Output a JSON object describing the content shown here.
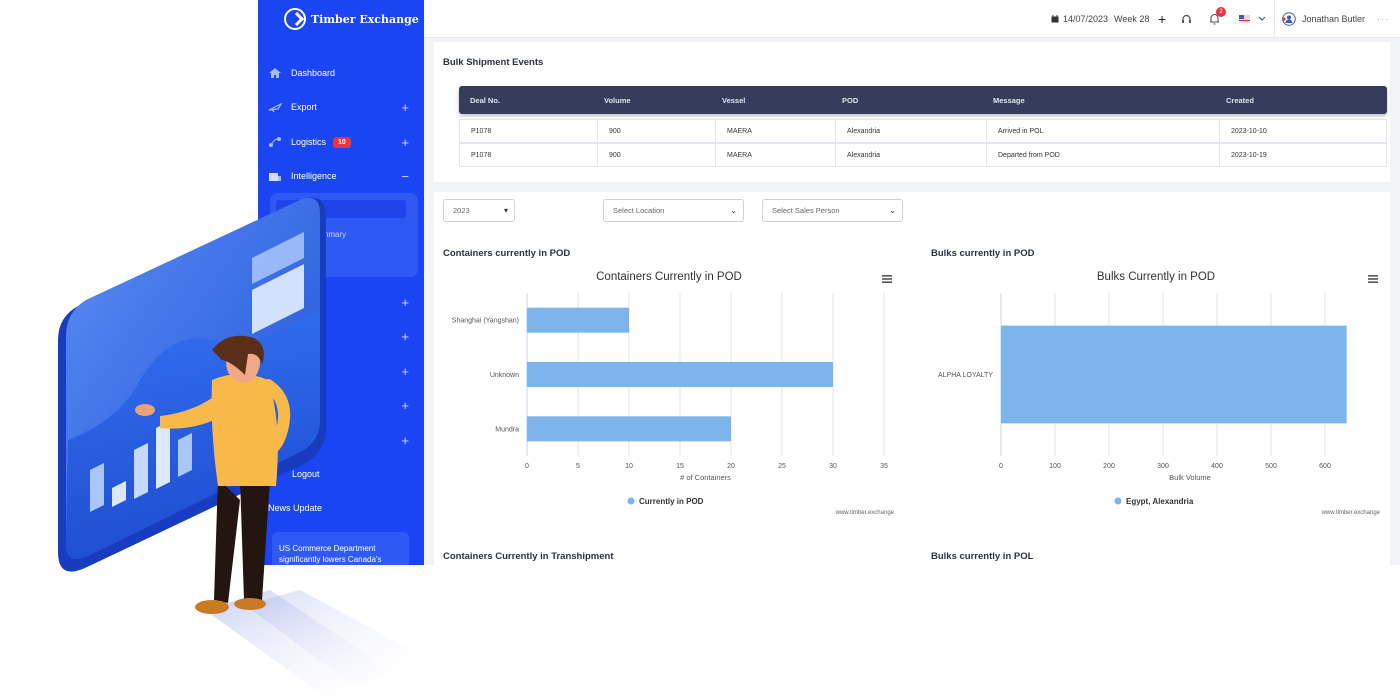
{
  "brand": {
    "name": "Timber Exchange"
  },
  "sidebar": {
    "items": [
      {
        "label": "Dashboard",
        "icon": "home-icon"
      },
      {
        "label": "Export",
        "icon": "plane-icon"
      },
      {
        "label": "Logistics",
        "icon": "route-icon",
        "badge": "10"
      },
      {
        "label": "Intelligence",
        "icon": "chart-icon"
      }
    ],
    "submenu": [
      "...mmary",
      "...a"
    ],
    "logout": "Logout",
    "news_title": "News Update",
    "news_text": "US Commerce Department significantly lowers Canada's"
  },
  "topbar": {
    "date": "14/07/2023",
    "week": "Week 28",
    "notif_count": "2",
    "user": "Jonathan Butler"
  },
  "events": {
    "title": "Bulk Shipment Events",
    "columns": [
      "Deal No.",
      "Volume",
      "Vessel",
      "POD",
      "Message",
      "Created"
    ],
    "rows": [
      [
        "P1078",
        "900",
        "MAERA",
        "Alexandria",
        "Arrived in POL",
        "2023-10-10"
      ],
      [
        "P1078",
        "900",
        "MAERA",
        "Alexandria",
        "Departed from POD",
        "2023-10-19"
      ]
    ]
  },
  "filters": {
    "year": "2023",
    "location_placeholder": "Select Location",
    "sales_placeholder": "Select Sales Person"
  },
  "sections": {
    "containers_pod": "Containers currently in POD",
    "bulks_pod": "Bulks currently in POD",
    "containers_trans": "Containers Currently in Transhipment",
    "bulks_pol": "Bulks currently in POL"
  },
  "chart_data": [
    {
      "type": "bar",
      "orientation": "horizontal",
      "title": "Containers Currently in POD",
      "categories": [
        "Shanghai (Yangshan)",
        "Unknown",
        "Mundra"
      ],
      "series": [
        {
          "name": "Currently in POD",
          "values": [
            10,
            30,
            20
          ]
        }
      ],
      "xlabel": "# of Containers",
      "xlim": [
        0,
        35
      ],
      "xticks": [
        0,
        5,
        10,
        15,
        20,
        25,
        30,
        35
      ],
      "credit": "www.timber.exchange",
      "color": "#7cb5ec",
      "legend": "bottom-center"
    },
    {
      "type": "bar",
      "orientation": "horizontal",
      "title": "Bulks Currently in POD",
      "categories": [
        "ALPHA LOYALTY"
      ],
      "series": [
        {
          "name": "Egypt, Alexandria",
          "values": [
            640
          ]
        }
      ],
      "xlabel": "Bulk Volume",
      "xlim": [
        0,
        700
      ],
      "xticks": [
        0,
        100,
        200,
        300,
        400,
        500,
        600
      ],
      "credit": "www.timber.exchange",
      "color": "#7cb5ec",
      "legend": "bottom-center"
    }
  ],
  "colors": {
    "sidebar": "#1b45f2",
    "table_header": "#363d5a",
    "bar": "#7cb5ec",
    "badge": "#e53544"
  }
}
